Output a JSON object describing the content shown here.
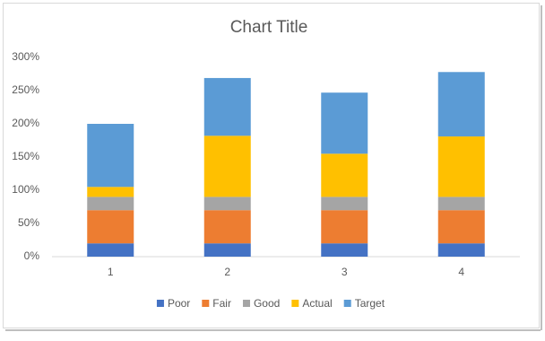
{
  "chart_data": {
    "type": "stacked-bar",
    "title": "Chart Title",
    "categories": [
      "1",
      "2",
      "3",
      "4"
    ],
    "series": [
      {
        "name": "Poor",
        "color": "#4472c4",
        "values": [
          20,
          20,
          20,
          20
        ]
      },
      {
        "name": "Fair",
        "color": "#ed7d31",
        "values": [
          50,
          50,
          50,
          50
        ]
      },
      {
        "name": "Good",
        "color": "#a5a5a5",
        "values": [
          20,
          20,
          20,
          20
        ]
      },
      {
        "name": "Actual",
        "color": "#ffc000",
        "values": [
          15,
          92,
          65,
          91
        ]
      },
      {
        "name": "Target",
        "color": "#5b9bd5",
        "values": [
          95,
          87,
          92,
          97
        ]
      }
    ],
    "ylim": [
      0,
      300
    ],
    "yticks": [
      {
        "value": 0,
        "label": "0%"
      },
      {
        "value": 50,
        "label": "50%"
      },
      {
        "value": 100,
        "label": "100%"
      },
      {
        "value": 150,
        "label": "150%"
      },
      {
        "value": 200,
        "label": "200%"
      },
      {
        "value": 250,
        "label": "250%"
      },
      {
        "value": 300,
        "label": "300%"
      }
    ],
    "grid": false,
    "legend": "bottom"
  }
}
